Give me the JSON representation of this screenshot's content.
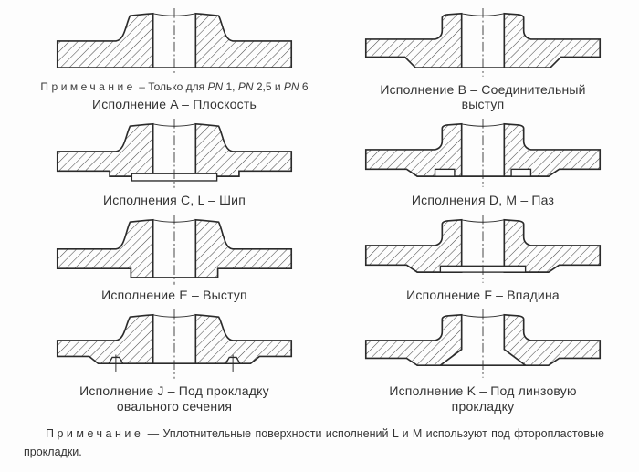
{
  "colors": {
    "background": "#fdfdfd",
    "drawing_line": "#2b2b2b",
    "hatch_line": "#4a4a4a",
    "text": "#333333"
  },
  "figures": [
    {
      "id": "A",
      "caption": "Исполнение A – Плоскость"
    },
    {
      "id": "B",
      "caption": "Исполнение B – Соединительный выступ"
    },
    {
      "id": "C",
      "caption": "Исполнения C, L – Шип"
    },
    {
      "id": "D",
      "caption": "Исполнения D, M – Паз"
    },
    {
      "id": "E",
      "caption": "Исполнение E – Выступ"
    },
    {
      "id": "F",
      "caption": "Исполнение F – Впадина"
    },
    {
      "id": "J",
      "caption": "Исполнение J – Под прокладку овального сечения"
    },
    {
      "id": "K",
      "caption": "Исполнение K – Под линзовую прокладку"
    }
  ],
  "note_a": {
    "segments": [
      {
        "t": "Примечание",
        "style": "spaced"
      },
      {
        "t": " – Только для ",
        "style": "plain"
      },
      {
        "t": "PN",
        "style": "italic"
      },
      {
        "t": " 1, ",
        "style": "plain"
      },
      {
        "t": "PN",
        "style": "italic"
      },
      {
        "t": " 2,5 и ",
        "style": "plain"
      },
      {
        "t": "PN",
        "style": "italic"
      },
      {
        "t": " 6",
        "style": "plain"
      }
    ]
  },
  "footnote": {
    "segments": [
      {
        "t": "Примечание",
        "style": "spaced"
      },
      {
        "t": " — Уплотнительные поверхности исполнений L и M используют под фторопластовые прокладки.",
        "style": "plain"
      }
    ]
  }
}
